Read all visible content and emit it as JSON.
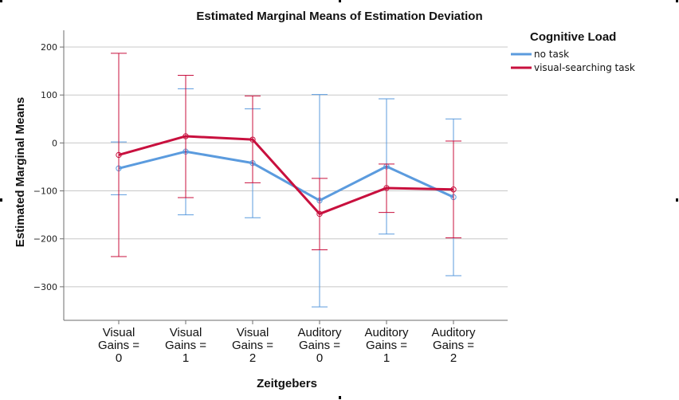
{
  "colors": {
    "no_task": "#5b9bde",
    "visual_searching": "#c8103e",
    "grid": "#c8c8c8",
    "axis": "#6e6e6e"
  },
  "chart_data": {
    "type": "line",
    "title": "Estimated Marginal Means of Estimation Deviation",
    "xlabel": "Zeitgebers",
    "ylabel": "Estimated Marginal Means",
    "categories": [
      [
        "Visual",
        "Gains =",
        "0"
      ],
      [
        "Visual",
        "Gains =",
        "1"
      ],
      [
        "Visual",
        "Gains =",
        "2"
      ],
      [
        "Auditory",
        "Gains =",
        "0"
      ],
      [
        "Auditory",
        "Gains =",
        "1"
      ],
      [
        "Auditory",
        "Gains =",
        "2"
      ]
    ],
    "ylim": [
      -370,
      235
    ],
    "yticks": [
      -300,
      -200,
      -100,
      0,
      100,
      200
    ],
    "ytick_labels": [
      "−300",
      "−200",
      "−100",
      "0",
      "100",
      "200"
    ],
    "grid": true,
    "legend": {
      "title": "Cognitive Load",
      "placement": "right"
    },
    "series": [
      {
        "name": "no task",
        "color": "#5b9bde",
        "values": [
          -53,
          -18,
          -42,
          -120,
          -49,
          -113
        ],
        "error_low": [
          -108,
          -150,
          -156,
          -342,
          -190,
          -277
        ],
        "error_high": [
          2,
          113,
          71,
          101,
          92,
          50
        ]
      },
      {
        "name": "visual-searching task",
        "color": "#c8103e",
        "values": [
          -25,
          14,
          7,
          -148,
          -94,
          -97
        ],
        "error_low": [
          -237,
          -114,
          -83,
          -223,
          -145,
          -198
        ],
        "error_high": [
          187,
          141,
          98,
          -74,
          -44,
          4
        ]
      }
    ]
  }
}
